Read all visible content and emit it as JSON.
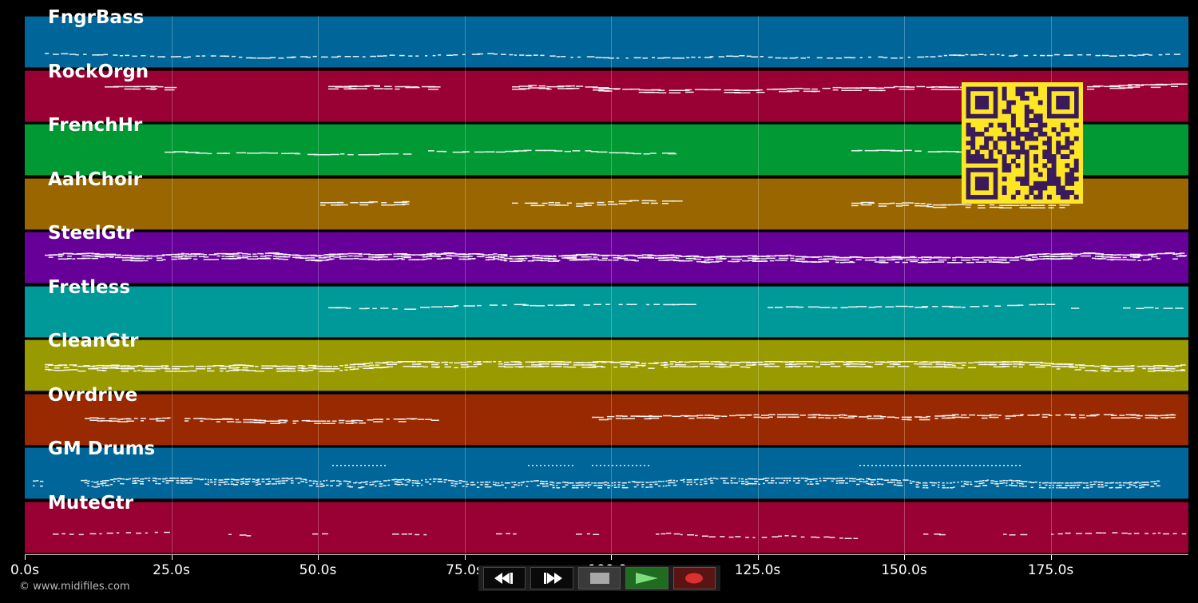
{
  "tracks": [
    {
      "name": "FngrBass",
      "color": "#006699",
      "pattern": "bass"
    },
    {
      "name": "RockOrgn",
      "color": "#990033",
      "pattern": "organ"
    },
    {
      "name": "FrenchHr",
      "color": "#009933",
      "pattern": "horn"
    },
    {
      "name": "AahChoir",
      "color": "#996600",
      "pattern": "choir"
    },
    {
      "name": "SteelGtr",
      "color": "#660099",
      "pattern": "dense"
    },
    {
      "name": "Fretless",
      "color": "#009999",
      "pattern": "fretless"
    },
    {
      "name": "CleanGtr",
      "color": "#999900",
      "pattern": "dense2"
    },
    {
      "name": "Ovrdrive",
      "color": "#992900",
      "pattern": "overdrive"
    },
    {
      "name": "GM Drums",
      "color": "#006699",
      "pattern": "drums"
    },
    {
      "name": "MuteGtr",
      "color": "#990033",
      "pattern": "mute"
    }
  ],
  "time_axis": {
    "min_seconds": 0,
    "max_seconds": 198.5,
    "ticks": [
      {
        "value": 0,
        "label": "0.0s"
      },
      {
        "value": 25,
        "label": "25.0s"
      },
      {
        "value": 50,
        "label": "50.0s"
      },
      {
        "value": 75,
        "label": "75.0s"
      },
      {
        "value": 100,
        "label": "100.0s"
      },
      {
        "value": 125,
        "label": "125.0s"
      },
      {
        "value": 150,
        "label": "150.0s"
      },
      {
        "value": 175,
        "label": "175.0s"
      }
    ]
  },
  "transport": {
    "rewind_icon": "rewind-icon",
    "forward_icon": "fast-forward-icon",
    "stop_icon": "stop-icon",
    "play_icon": "play-icon",
    "record_icon": "record-icon"
  },
  "footer": {
    "copyright": "© www.midifiles.com"
  },
  "qr": {
    "fg": "#3b1a5a",
    "bg": "#fde725"
  }
}
